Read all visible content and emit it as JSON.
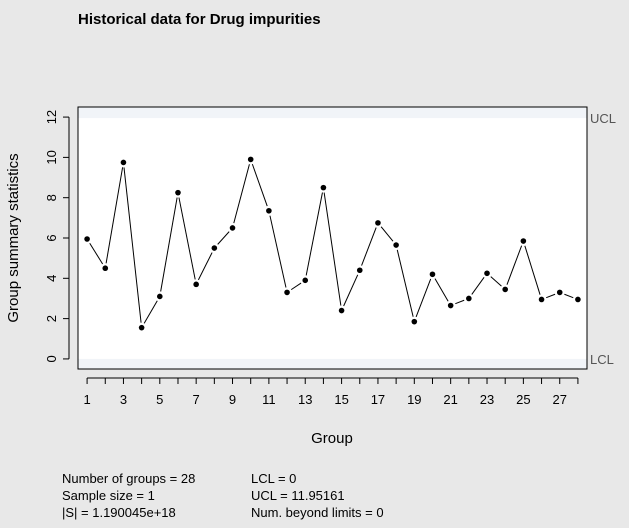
{
  "chart_data": {
    "type": "line",
    "title": "Historical data for Drug impurities",
    "xlabel": "Group",
    "ylabel": "Group summary statistics",
    "x": [
      1,
      2,
      3,
      4,
      5,
      6,
      7,
      8,
      9,
      10,
      11,
      12,
      13,
      14,
      15,
      16,
      17,
      18,
      19,
      20,
      21,
      22,
      23,
      24,
      25,
      26,
      27,
      28
    ],
    "values": [
      5.95,
      4.5,
      9.75,
      1.55,
      3.1,
      8.25,
      3.7,
      5.5,
      6.5,
      9.9,
      7.35,
      3.3,
      3.9,
      8.5,
      2.4,
      4.4,
      6.75,
      5.65,
      1.85,
      4.2,
      2.65,
      3.0,
      4.25,
      3.45,
      5.85,
      2.95,
      3.3,
      2.95
    ],
    "xticks": [
      1,
      3,
      5,
      7,
      9,
      11,
      13,
      15,
      17,
      19,
      21,
      23,
      25,
      27
    ],
    "yticks": [
      0,
      2,
      4,
      6,
      8,
      10,
      12
    ],
    "xlim": [
      0.5,
      28.5
    ],
    "ylim": [
      -0.5,
      12.5
    ],
    "limits": [
      {
        "name": "UCL",
        "value": 11.95161
      },
      {
        "name": "LCL",
        "value": 0
      }
    ],
    "grid": false
  },
  "stats_left": [
    "Number of groups = 28",
    "Sample size = 1",
    "|S| = 1.190045e+18"
  ],
  "stats_right": [
    "LCL = 0",
    "UCL = 11.95161",
    "Num. beyond limits = 0"
  ],
  "colors": {
    "background": "#e8e8e8",
    "plot_bg": "#f1f4f8",
    "band": "#ffffff",
    "line": "#000000",
    "limit_text": "#555555"
  }
}
